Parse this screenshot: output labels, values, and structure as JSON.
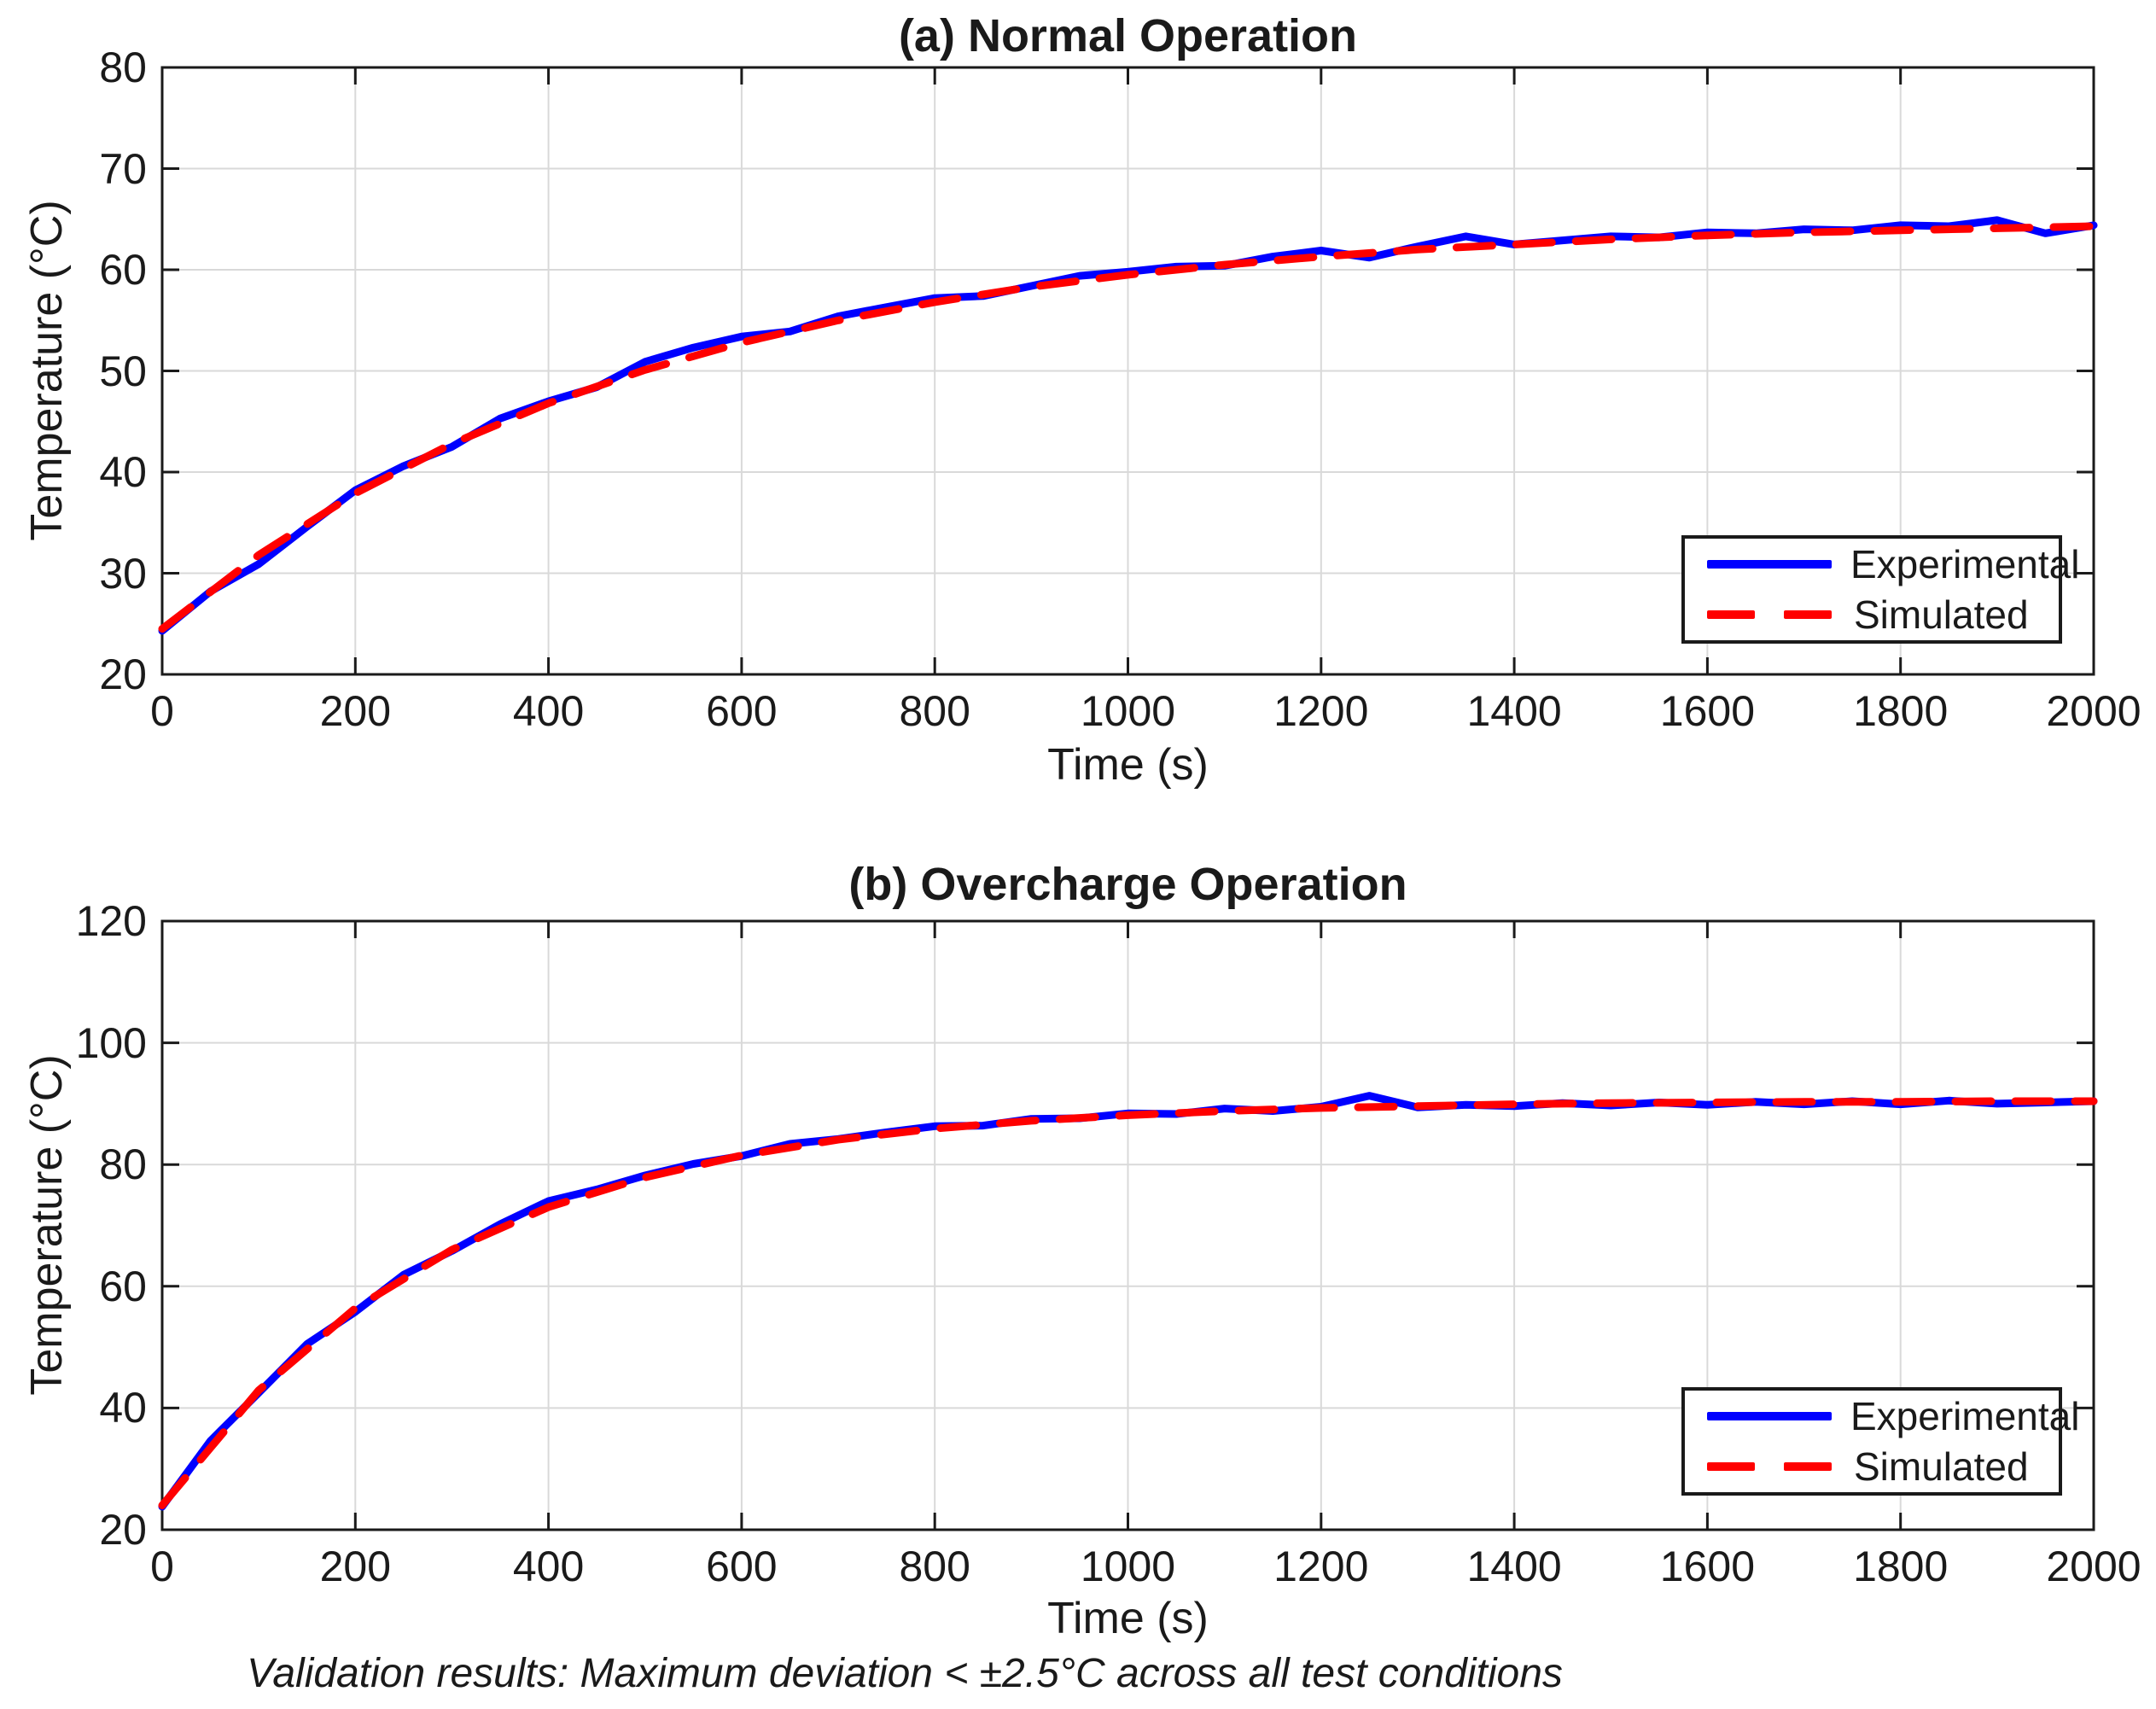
{
  "figure": {
    "caption": "Validation results: Maximum deviation < ±2.5°C across all test conditions",
    "colors": {
      "experimental": "#0000FF",
      "simulated": "#FF0000",
      "grid": "#d9d9d9",
      "axis": "#1a1a1a"
    }
  },
  "chart_data": [
    {
      "type": "line",
      "title": "(a) Normal Operation",
      "xlabel": "Time (s)",
      "ylabel": "Temperature (°C)",
      "xlim": [
        0,
        2000
      ],
      "ylim": [
        20,
        80
      ],
      "xticks": [
        0,
        200,
        400,
        600,
        800,
        1000,
        1200,
        1400,
        1600,
        1800,
        2000
      ],
      "yticks": [
        20,
        30,
        40,
        50,
        60,
        70,
        80
      ],
      "grid": true,
      "legend": {
        "position": "southeast",
        "entries": [
          "Experimental",
          "Simulated"
        ]
      },
      "series": [
        {
          "name": "Experimental",
          "color": "#0000FF",
          "style": "solid",
          "x_start": 0,
          "x_step": 50,
          "values": [
            24.3,
            28.2,
            30.9,
            34.6,
            38.2,
            40.6,
            42.5,
            45.3,
            47.0,
            48.4,
            50.9,
            52.3,
            53.4,
            53.9,
            55.4,
            56.3,
            57.2,
            57.4,
            58.4,
            59.4,
            59.8,
            60.3,
            60.4,
            61.3,
            61.9,
            61.2,
            62.3,
            63.3,
            62.5,
            62.9,
            63.3,
            63.2,
            63.7,
            63.6,
            64.0,
            63.9,
            64.4,
            64.3,
            64.9,
            63.6,
            64.4
          ]
        },
        {
          "name": "Simulated",
          "color": "#FF0000",
          "style": "dashed",
          "x_start": 0,
          "x_step": 100,
          "values": [
            24.5,
            31.8,
            37.9,
            42.8,
            46.8,
            50.1,
            52.8,
            55.0,
            56.8,
            58.3,
            59.5,
            60.5,
            61.3,
            62.0,
            62.5,
            63.0,
            63.4,
            63.7,
            63.9,
            64.1,
            64.3
          ]
        }
      ]
    },
    {
      "type": "line",
      "title": "(b) Overcharge Operation",
      "xlabel": "Time (s)",
      "ylabel": "Temperature (°C)",
      "xlim": [
        0,
        2000
      ],
      "ylim": [
        20,
        120
      ],
      "xticks": [
        0,
        200,
        400,
        600,
        800,
        1000,
        1200,
        1400,
        1600,
        1800,
        2000
      ],
      "yticks": [
        20,
        40,
        60,
        80,
        100,
        120
      ],
      "grid": true,
      "legend": {
        "position": "southeast",
        "entries": [
          "Experimental",
          "Simulated"
        ]
      },
      "series": [
        {
          "name": "Experimental",
          "color": "#0000FF",
          "style": "solid",
          "x_start": 0,
          "x_step": 50,
          "values": [
            23.8,
            34.6,
            42.5,
            50.5,
            55.8,
            61.9,
            65.8,
            70.2,
            74.0,
            75.9,
            78.2,
            80.1,
            81.4,
            83.4,
            84.2,
            85.3,
            86.3,
            86.4,
            87.5,
            87.6,
            88.4,
            88.3,
            89.2,
            88.8,
            89.5,
            91.3,
            89.4,
            89.8,
            89.6,
            90.1,
            89.7,
            90.2,
            89.8,
            90.3,
            89.9,
            90.4,
            89.9,
            90.5,
            90.0,
            90.2,
            90.4
          ]
        },
        {
          "name": "Simulated",
          "color": "#FF0000",
          "style": "dashed",
          "x_start": 0,
          "x_step": 100,
          "values": [
            24.0,
            42.9,
            56.4,
            66.0,
            73.0,
            77.9,
            81.5,
            84.1,
            85.9,
            87.2,
            88.1,
            88.8,
            89.3,
            89.6,
            89.9,
            90.1,
            90.2,
            90.3,
            90.3,
            90.4,
            90.4
          ]
        }
      ]
    }
  ]
}
